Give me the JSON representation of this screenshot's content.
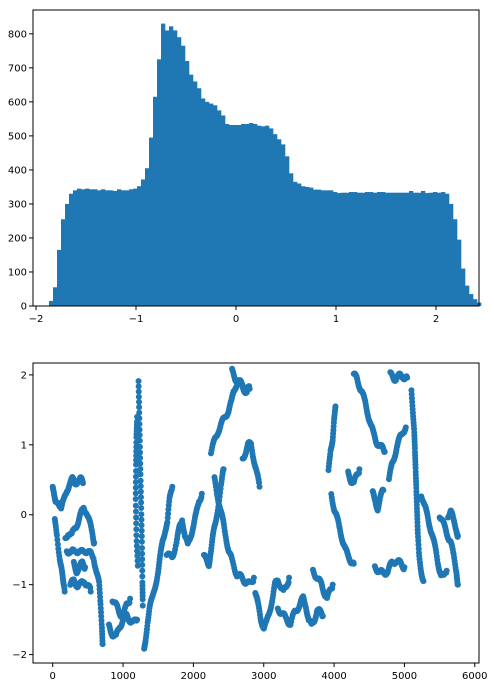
{
  "chart_data": [
    {
      "type": "bar",
      "subtype": "histogram",
      "title": "",
      "xlabel": "",
      "ylabel": "",
      "xlim": [
        -2.03,
        2.43
      ],
      "ylim": [
        0,
        870
      ],
      "xticks": [
        -2,
        -1,
        0,
        1,
        2
      ],
      "yticks": [
        0,
        100,
        200,
        300,
        400,
        500,
        600,
        700,
        800
      ],
      "color": "#1f77b4",
      "bin_start": -1.87,
      "bin_width": 0.04,
      "values": [
        15,
        55,
        165,
        255,
        300,
        330,
        340,
        345,
        343,
        345,
        343,
        343,
        340,
        343,
        340,
        340,
        338,
        343,
        340,
        340,
        343,
        345,
        352,
        372,
        405,
        495,
        615,
        725,
        830,
        810,
        822,
        810,
        790,
        765,
        720,
        680,
        660,
        640,
        610,
        600,
        595,
        590,
        575,
        560,
        535,
        532,
        532,
        532,
        535,
        535,
        538,
        535,
        530,
        528,
        530,
        522,
        505,
        490,
        475,
        440,
        390,
        365,
        360,
        352,
        350,
        348,
        342,
        342,
        340,
        340,
        340,
        335,
        332,
        333,
        333,
        335,
        335,
        333,
        333,
        335,
        335,
        333,
        335,
        335,
        333,
        333,
        333,
        333,
        333,
        333,
        338,
        333,
        333,
        338,
        332,
        333,
        335,
        333,
        335,
        330,
        300,
        255,
        195,
        110,
        60,
        35,
        20,
        10
      ]
    },
    {
      "type": "scatter",
      "title": "",
      "xlabel": "",
      "ylabel": "",
      "xlim": [
        -280,
        6060
      ],
      "ylim": [
        -2.12,
        2.17
      ],
      "xticks": [
        0,
        1000,
        2000,
        3000,
        4000,
        5000,
        6000
      ],
      "yticks": [
        -2,
        -1,
        0,
        1,
        2
      ],
      "color": "#1f77b4",
      "marker_size": 3,
      "segments": [
        [
          [
            0,
            0.4
          ],
          [
            20,
            0.25
          ],
          [
            40,
            0.15
          ],
          [
            80,
            0.2
          ],
          [
            120,
            0.1
          ],
          [
            160,
            0.2
          ],
          [
            200,
            0.35
          ],
          [
            240,
            0.45
          ],
          [
            280,
            0.5
          ],
          [
            320,
            0.45
          ],
          [
            360,
            0.5
          ],
          [
            400,
            0.5
          ],
          [
            430,
            0.45
          ]
        ],
        [
          [
            30,
            -0.1
          ],
          [
            60,
            -0.3
          ],
          [
            100,
            -0.6
          ],
          [
            130,
            -0.8
          ],
          [
            150,
            -1.0
          ],
          [
            170,
            -1.1
          ]
        ],
        [
          [
            180,
            -0.35
          ],
          [
            220,
            -0.25
          ],
          [
            270,
            -0.3
          ],
          [
            310,
            -0.2
          ],
          [
            360,
            -0.1
          ],
          [
            400,
            0.0
          ],
          [
            440,
            0.1
          ],
          [
            480,
            0.05
          ],
          [
            520,
            -0.1
          ],
          [
            560,
            -0.25
          ],
          [
            590,
            -0.4
          ]
        ],
        [
          [
            200,
            -0.5
          ],
          [
            260,
            -0.55
          ],
          [
            330,
            -0.5
          ],
          [
            400,
            -0.55
          ],
          [
            460,
            -0.5
          ],
          [
            520,
            -0.55
          ],
          [
            580,
            -0.6
          ],
          [
            620,
            -0.8
          ],
          [
            660,
            -1.0
          ],
          [
            680,
            -1.3
          ],
          [
            700,
            -1.6
          ],
          [
            710,
            -1.85
          ]
        ],
        [
          [
            250,
            -1.0
          ],
          [
            300,
            -0.95
          ],
          [
            350,
            -1.0
          ],
          [
            400,
            -1.0
          ],
          [
            450,
            -0.95
          ],
          [
            500,
            -1.0
          ],
          [
            540,
            -1.1
          ]
        ],
        [
          [
            300,
            -0.7
          ],
          [
            340,
            -0.8
          ],
          [
            380,
            -0.75
          ],
          [
            420,
            -0.7
          ],
          [
            460,
            -0.75
          ]
        ],
        [
          [
            800,
            -1.6
          ],
          [
            850,
            -1.7
          ],
          [
            900,
            -1.75
          ],
          [
            950,
            -1.6
          ],
          [
            1000,
            -1.5
          ],
          [
            1050,
            -1.45
          ],
          [
            1100,
            -1.5
          ],
          [
            1150,
            -1.55
          ],
          [
            1200,
            -1.5
          ]
        ],
        [
          [
            850,
            -1.2
          ],
          [
            900,
            -1.3
          ],
          [
            950,
            -1.4
          ],
          [
            1000,
            -1.45
          ],
          [
            1050,
            -1.3
          ],
          [
            1100,
            -1.2
          ]
        ],
        [
          [
            1220,
            1.95
          ],
          [
            1230,
            1.5
          ],
          [
            1240,
            1.0
          ],
          [
            1250,
            0.5
          ],
          [
            1260,
            0.0
          ],
          [
            1270,
            -0.5
          ],
          [
            1275,
            -1.0
          ],
          [
            1280,
            -1.3
          ]
        ],
        [
          [
            1210,
            -0.7
          ],
          [
            1190,
            -0.3
          ],
          [
            1180,
            0.2
          ],
          [
            1185,
            0.7
          ],
          [
            1190,
            1.1
          ],
          [
            1200,
            1.4
          ]
        ],
        [
          [
            1300,
            -1.95
          ],
          [
            1320,
            -1.8
          ],
          [
            1350,
            -1.5
          ],
          [
            1380,
            -1.3
          ],
          [
            1420,
            -1.2
          ],
          [
            1460,
            -1.0
          ],
          [
            1500,
            -0.8
          ],
          [
            1530,
            -0.6
          ],
          [
            1560,
            -0.4
          ],
          [
            1600,
            -0.2
          ],
          [
            1630,
            -0.1
          ],
          [
            1660,
            0.2
          ],
          [
            1700,
            0.4
          ]
        ],
        [
          [
            1620,
            -0.55
          ],
          [
            1660,
            -0.6
          ],
          [
            1700,
            -0.6
          ],
          [
            1760,
            -0.4
          ],
          [
            1800,
            -0.2
          ],
          [
            1840,
            -0.05
          ],
          [
            1880,
            -0.3
          ],
          [
            1920,
            -0.45
          ],
          [
            1960,
            -0.3
          ],
          [
            2000,
            -0.15
          ],
          [
            2040,
            0.0
          ],
          [
            2080,
            0.2
          ],
          [
            2120,
            0.3
          ]
        ],
        [
          [
            2150,
            -0.6
          ],
          [
            2180,
            -0.65
          ],
          [
            2220,
            -0.7
          ],
          [
            2250,
            -0.5
          ],
          [
            2280,
            -0.3
          ],
          [
            2320,
            -0.1
          ],
          [
            2360,
            0.2
          ],
          [
            2400,
            0.45
          ],
          [
            2430,
            0.65
          ]
        ],
        [
          [
            2300,
            0.5
          ],
          [
            2340,
            0.3
          ],
          [
            2380,
            0.1
          ],
          [
            2420,
            -0.1
          ],
          [
            2460,
            -0.3
          ],
          [
            2500,
            -0.5
          ],
          [
            2560,
            -0.7
          ],
          [
            2620,
            -0.85
          ],
          [
            2680,
            -0.9
          ],
          [
            2740,
            -0.95
          ],
          [
            2800,
            -1.0
          ],
          [
            2860,
            -0.9
          ]
        ],
        [
          [
            2250,
            0.9
          ],
          [
            2300,
            1.05
          ],
          [
            2350,
            1.2
          ],
          [
            2400,
            1.3
          ],
          [
            2450,
            1.4
          ],
          [
            2500,
            1.5
          ],
          [
            2540,
            1.6
          ],
          [
            2570,
            1.75
          ],
          [
            2600,
            1.85
          ],
          [
            2640,
            1.9
          ],
          [
            2690,
            1.85
          ],
          [
            2720,
            1.8
          ],
          [
            2760,
            1.75
          ]
        ],
        [
          [
            2550,
            2.05
          ],
          [
            2600,
            1.95
          ],
          [
            2650,
            1.9
          ],
          [
            2700,
            1.85
          ],
          [
            2750,
            1.8
          ],
          [
            2800,
            1.8
          ]
        ],
        [
          [
            2700,
            0.8
          ],
          [
            2740,
            0.9
          ],
          [
            2780,
            1.0
          ],
          [
            2820,
            1.0
          ],
          [
            2860,
            0.8
          ],
          [
            2900,
            0.6
          ],
          [
            2940,
            0.4
          ]
        ],
        [
          [
            2880,
            -1.1
          ],
          [
            2920,
            -1.3
          ],
          [
            2960,
            -1.5
          ],
          [
            3000,
            -1.6
          ],
          [
            3040,
            -1.55
          ],
          [
            3080,
            -1.4
          ],
          [
            3120,
            -1.2
          ],
          [
            3160,
            -1.0
          ],
          [
            3200,
            -0.95
          ],
          [
            3240,
            -1.0
          ],
          [
            3280,
            -1.1
          ],
          [
            3320,
            -1.05
          ],
          [
            3360,
            -0.9
          ]
        ],
        [
          [
            3200,
            -1.35
          ],
          [
            3260,
            -1.4
          ],
          [
            3320,
            -1.5
          ],
          [
            3380,
            -1.55
          ],
          [
            3440,
            -1.4
          ],
          [
            3500,
            -1.3
          ],
          [
            3560,
            -1.2
          ],
          [
            3600,
            -1.3
          ],
          [
            3640,
            -1.5
          ],
          [
            3680,
            -1.6
          ],
          [
            3720,
            -1.5
          ],
          [
            3760,
            -1.35
          ],
          [
            3800,
            -1.4
          ],
          [
            3840,
            -1.45
          ]
        ],
        [
          [
            3700,
            -0.8
          ],
          [
            3760,
            -0.9
          ],
          [
            3820,
            -1.0
          ],
          [
            3860,
            -1.1
          ],
          [
            3900,
            -1.2
          ],
          [
            3940,
            -1.1
          ],
          [
            3980,
            -1.0
          ]
        ],
        [
          [
            3920,
            0.6
          ],
          [
            3950,
            0.9
          ],
          [
            3980,
            1.1
          ],
          [
            4000,
            1.4
          ],
          [
            4020,
            1.55
          ]
        ],
        [
          [
            3960,
            0.3
          ],
          [
            4000,
            0.1
          ],
          [
            4040,
            -0.05
          ],
          [
            4080,
            -0.2
          ],
          [
            4120,
            -0.35
          ],
          [
            4160,
            -0.5
          ],
          [
            4200,
            -0.6
          ],
          [
            4240,
            -0.65
          ],
          [
            4280,
            -0.7
          ]
        ],
        [
          [
            4200,
            0.6
          ],
          [
            4240,
            0.5
          ],
          [
            4280,
            0.45
          ],
          [
            4320,
            0.55
          ],
          [
            4360,
            0.65
          ]
        ],
        [
          [
            4280,
            2.0
          ],
          [
            4320,
            1.95
          ],
          [
            4360,
            1.85
          ],
          [
            4400,
            1.75
          ],
          [
            4440,
            1.6
          ],
          [
            4480,
            1.45
          ],
          [
            4520,
            1.3
          ],
          [
            4560,
            1.15
          ],
          [
            4600,
            1.05
          ],
          [
            4640,
            1.0
          ],
          [
            4680,
            0.95
          ],
          [
            4720,
            0.9
          ]
        ],
        [
          [
            4580,
            -0.75
          ],
          [
            4640,
            -0.8
          ],
          [
            4700,
            -0.85
          ],
          [
            4760,
            -0.8
          ],
          [
            4820,
            -0.7
          ],
          [
            4880,
            -0.65
          ],
          [
            4940,
            -0.7
          ],
          [
            5000,
            -0.75
          ]
        ],
        [
          [
            4550,
            0.3
          ],
          [
            4580,
            0.2
          ],
          [
            4620,
            0.1
          ],
          [
            4660,
            0.25
          ],
          [
            4700,
            0.35
          ]
        ],
        [
          [
            4800,
            2.0
          ],
          [
            4860,
            1.95
          ],
          [
            4920,
            1.98
          ],
          [
            4980,
            1.98
          ],
          [
            5040,
            1.96
          ]
        ],
        [
          [
            4780,
            0.5
          ],
          [
            4820,
            0.7
          ],
          [
            4860,
            0.85
          ],
          [
            4900,
            1.0
          ],
          [
            4940,
            1.1
          ],
          [
            4980,
            1.2
          ],
          [
            5020,
            1.25
          ]
        ],
        [
          [
            5100,
            1.8
          ],
          [
            5120,
            1.5
          ],
          [
            5140,
            1.2
          ],
          [
            5150,
            0.9
          ],
          [
            5160,
            0.6
          ],
          [
            5170,
            0.3
          ],
          [
            5180,
            0.0
          ],
          [
            5190,
            -0.3
          ],
          [
            5210,
            -0.6
          ],
          [
            5240,
            -0.8
          ],
          [
            5270,
            -0.95
          ]
        ],
        [
          [
            5240,
            0.3
          ],
          [
            5280,
            0.15
          ],
          [
            5320,
            0.0
          ],
          [
            5360,
            -0.15
          ],
          [
            5400,
            -0.3
          ],
          [
            5440,
            -0.5
          ],
          [
            5480,
            -0.7
          ],
          [
            5520,
            -0.85
          ],
          [
            5560,
            -0.9
          ],
          [
            5600,
            -0.8
          ]
        ],
        [
          [
            5500,
            0.0
          ],
          [
            5540,
            -0.1
          ],
          [
            5580,
            -0.2
          ],
          [
            5620,
            -0.3
          ],
          [
            5660,
            -0.4
          ],
          [
            5700,
            -0.6
          ],
          [
            5740,
            -0.8
          ],
          [
            5760,
            -1.0
          ]
        ],
        [
          [
            5620,
            0.0
          ],
          [
            5660,
            0.05
          ],
          [
            5700,
            -0.1
          ],
          [
            5740,
            -0.2
          ],
          [
            5760,
            -0.3
          ]
        ]
      ]
    }
  ]
}
